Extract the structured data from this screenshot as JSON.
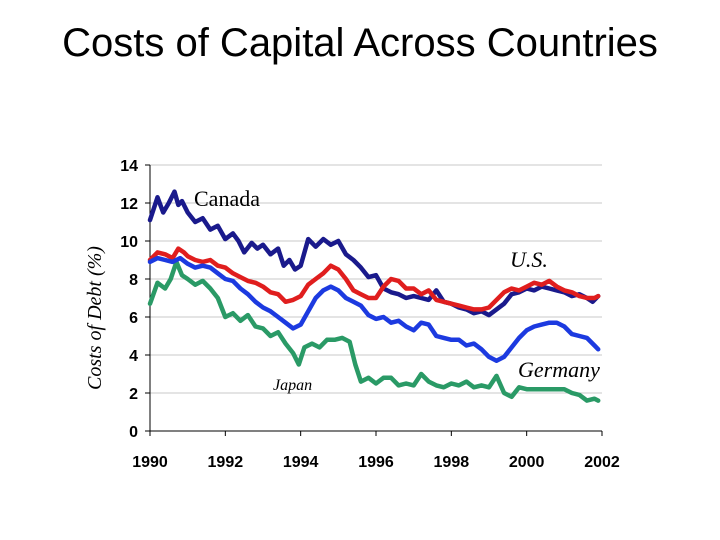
{
  "chart_data": {
    "type": "line",
    "title": "Costs of Capital Across Countries",
    "ylabel": "Costs of Debt (%)",
    "xlabel": "",
    "xlim": [
      1990,
      2002
    ],
    "ylim": [
      0,
      14
    ],
    "x_ticks": [
      "1990",
      "1992",
      "1994",
      "1996",
      "1998",
      "2000",
      "2002"
    ],
    "y_ticks": [
      "0",
      "2",
      "4",
      "6",
      "8",
      "10",
      "12",
      "14"
    ],
    "grid": true,
    "colors": {
      "Canada": "#1a1a8c",
      "U.S.": "#e01e1e",
      "Japan": "#2a9a66",
      "Germany": "#1c3ae0"
    },
    "series": [
      {
        "name": "Canada",
        "color": "#1a1a8c",
        "x": [
          1990,
          1990.2,
          1990.35,
          1990.5,
          1990.65,
          1990.75,
          1990.85,
          1991,
          1991.2,
          1991.4,
          1991.6,
          1991.8,
          1992,
          1992.2,
          1992.35,
          1992.5,
          1992.7,
          1992.85,
          1993,
          1993.2,
          1993.4,
          1993.55,
          1993.7,
          1993.85,
          1994,
          1994.2,
          1994.4,
          1994.6,
          1994.8,
          1995,
          1995.2,
          1995.4,
          1995.6,
          1995.8,
          1996,
          1996.2,
          1996.4,
          1996.6,
          1996.8,
          1997,
          1997.2,
          1997.4,
          1997.6,
          1997.8,
          1998,
          1998.2,
          1998.4,
          1998.6,
          1998.8,
          1999,
          1999.2,
          1999.4,
          1999.6,
          1999.8,
          2000,
          2000.2,
          2000.4,
          2000.6,
          2000.8,
          2001,
          2001.2,
          2001.4,
          2001.6,
          2001.75,
          2001.9
        ],
        "values": [
          11.1,
          12.3,
          11.5,
          12.0,
          12.6,
          11.9,
          12.1,
          11.5,
          11.0,
          11.2,
          10.6,
          10.8,
          10.1,
          10.4,
          10.0,
          9.4,
          9.9,
          9.6,
          9.8,
          9.3,
          9.6,
          8.7,
          9.0,
          8.5,
          8.7,
          10.1,
          9.7,
          10.1,
          9.8,
          10.0,
          9.3,
          9.0,
          8.6,
          8.1,
          8.2,
          7.5,
          7.3,
          7.2,
          7.0,
          7.1,
          7.0,
          6.9,
          7.4,
          6.8,
          6.7,
          6.5,
          6.4,
          6.2,
          6.3,
          6.1,
          6.4,
          6.7,
          7.2,
          7.3,
          7.5,
          7.4,
          7.6,
          7.5,
          7.4,
          7.3,
          7.1,
          7.2,
          7.0,
          6.8,
          7.1
        ]
      },
      {
        "name": "U.S.",
        "color": "#e01e1e",
        "x": [
          1990,
          1990.2,
          1990.4,
          1990.6,
          1990.75,
          1990.9,
          1991,
          1991.2,
          1991.4,
          1991.6,
          1991.8,
          1992,
          1992.2,
          1992.4,
          1992.6,
          1992.8,
          1993,
          1993.2,
          1993.4,
          1993.6,
          1993.8,
          1994,
          1994.2,
          1994.4,
          1994.6,
          1994.8,
          1995,
          1995.2,
          1995.4,
          1995.6,
          1995.8,
          1996,
          1996.2,
          1996.4,
          1996.6,
          1996.8,
          1997,
          1997.2,
          1997.4,
          1997.6,
          1997.8,
          1998,
          1998.2,
          1998.4,
          1998.6,
          1998.8,
          1999,
          1999.2,
          1999.4,
          1999.6,
          1999.8,
          2000,
          2000.2,
          2000.4,
          2000.6,
          2000.8,
          2001,
          2001.2,
          2001.4,
          2001.6,
          2001.8,
          2001.9
        ],
        "values": [
          9.0,
          9.4,
          9.3,
          9.1,
          9.6,
          9.4,
          9.2,
          9.0,
          8.9,
          9.0,
          8.7,
          8.6,
          8.3,
          8.1,
          7.9,
          7.8,
          7.6,
          7.3,
          7.2,
          6.8,
          6.9,
          7.1,
          7.7,
          8.0,
          8.3,
          8.7,
          8.5,
          8.0,
          7.4,
          7.2,
          7.0,
          7.0,
          7.6,
          8.0,
          7.9,
          7.5,
          7.5,
          7.2,
          7.4,
          6.9,
          6.8,
          6.7,
          6.6,
          6.5,
          6.4,
          6.4,
          6.5,
          6.9,
          7.3,
          7.5,
          7.4,
          7.6,
          7.8,
          7.7,
          7.9,
          7.6,
          7.4,
          7.3,
          7.1,
          7.0,
          7.0,
          7.1
        ]
      },
      {
        "name": "Japan",
        "color": "#2a9a66",
        "x": [
          1990,
          1990.2,
          1990.4,
          1990.55,
          1990.7,
          1990.85,
          1991,
          1991.2,
          1991.4,
          1991.6,
          1991.8,
          1992,
          1992.2,
          1992.4,
          1992.6,
          1992.8,
          1993,
          1993.2,
          1993.4,
          1993.6,
          1993.8,
          1993.95,
          1994.1,
          1994.3,
          1994.5,
          1994.7,
          1994.9,
          1995.1,
          1995.3,
          1995.45,
          1995.6,
          1995.8,
          1996,
          1996.2,
          1996.4,
          1996.6,
          1996.8,
          1997,
          1997.2,
          1997.4,
          1997.6,
          1997.8,
          1998,
          1998.2,
          1998.4,
          1998.6,
          1998.8,
          1999,
          1999.2,
          1999.4,
          1999.6,
          1999.8,
          2000,
          2000.2,
          2000.4,
          2000.6,
          2000.8,
          2001,
          2001.2,
          2001.4,
          2001.6,
          2001.8,
          2001.9
        ],
        "values": [
          6.7,
          7.8,
          7.5,
          8.0,
          8.9,
          8.2,
          8.0,
          7.7,
          7.9,
          7.5,
          7.0,
          6.0,
          6.2,
          5.8,
          6.1,
          5.5,
          5.4,
          5.0,
          5.2,
          4.6,
          4.1,
          3.5,
          4.4,
          4.6,
          4.4,
          4.8,
          4.8,
          4.9,
          4.7,
          3.5,
          2.6,
          2.8,
          2.5,
          2.8,
          2.8,
          2.4,
          2.5,
          2.4,
          3.0,
          2.6,
          2.4,
          2.3,
          2.5,
          2.4,
          2.6,
          2.3,
          2.4,
          2.3,
          2.9,
          2.0,
          1.8,
          2.3,
          2.2,
          2.2,
          2.2,
          2.2,
          2.2,
          2.2,
          2.0,
          1.9,
          1.6,
          1.7,
          1.6
        ]
      },
      {
        "name": "Germany",
        "color": "#1c3ae0",
        "x": [
          1990,
          1990.2,
          1990.4,
          1990.6,
          1990.8,
          1991,
          1991.2,
          1991.4,
          1991.6,
          1991.8,
          1992,
          1992.2,
          1992.4,
          1992.6,
          1992.8,
          1993,
          1993.2,
          1993.4,
          1993.6,
          1993.8,
          1994,
          1994.2,
          1994.4,
          1994.6,
          1994.8,
          1995,
          1995.2,
          1995.4,
          1995.6,
          1995.8,
          1996,
          1996.2,
          1996.4,
          1996.6,
          1996.8,
          1997,
          1997.2,
          1997.4,
          1997.6,
          1997.8,
          1998,
          1998.2,
          1998.4,
          1998.6,
          1998.8,
          1999,
          1999.2,
          1999.4,
          1999.6,
          1999.8,
          2000,
          2000.2,
          2000.4,
          2000.6,
          2000.8,
          2001,
          2001.2,
          2001.4,
          2001.6,
          2001.8,
          2001.9
        ],
        "values": [
          8.9,
          9.1,
          9.0,
          8.9,
          9.1,
          8.8,
          8.6,
          8.7,
          8.6,
          8.3,
          8.0,
          7.9,
          7.5,
          7.2,
          6.8,
          6.5,
          6.3,
          6.0,
          5.7,
          5.4,
          5.6,
          6.3,
          7.0,
          7.4,
          7.6,
          7.4,
          7.0,
          6.8,
          6.6,
          6.1,
          5.9,
          6.0,
          5.7,
          5.8,
          5.5,
          5.3,
          5.7,
          5.6,
          5.0,
          4.9,
          4.8,
          4.8,
          4.5,
          4.6,
          4.3,
          3.9,
          3.7,
          3.9,
          4.4,
          4.9,
          5.3,
          5.5,
          5.6,
          5.7,
          5.7,
          5.5,
          5.1,
          5.0,
          4.9,
          4.5,
          4.3
        ]
      }
    ],
    "annotations": [
      {
        "id": "canada",
        "text": "Canada"
      },
      {
        "id": "us",
        "text": "U.S."
      },
      {
        "id": "japan",
        "text": "Japan"
      },
      {
        "id": "germany",
        "text": "Germany"
      }
    ]
  }
}
